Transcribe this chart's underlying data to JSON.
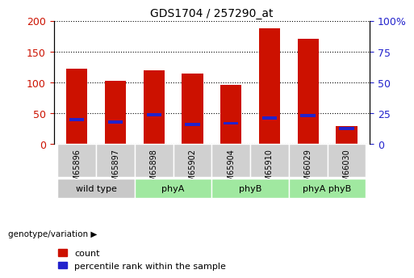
{
  "title": "GDS1704 / 257290_at",
  "samples": [
    "GSM65896",
    "GSM65897",
    "GSM65898",
    "GSM65902",
    "GSM65904",
    "GSM65910",
    "GSM66029",
    "GSM66030"
  ],
  "counts": [
    122,
    103,
    120,
    114,
    96,
    188,
    171,
    30
  ],
  "percentile_ranks": [
    20,
    18,
    24,
    16,
    17,
    21,
    23,
    13
  ],
  "groups": [
    {
      "label": "wild type",
      "start": 0,
      "end": 2,
      "color": "#c8c8c8"
    },
    {
      "label": "phyA",
      "start": 2,
      "end": 4,
      "color": "#a0e8a0"
    },
    {
      "label": "phyB",
      "start": 4,
      "end": 6,
      "color": "#a0e8a0"
    },
    {
      "label": "phyA phyB",
      "start": 6,
      "end": 8,
      "color": "#a0e8a0"
    }
  ],
  "sample_box_color": "#d0d0d0",
  "bar_color": "#cc1100",
  "percentile_color": "#2222cc",
  "left_axis_color": "#cc1100",
  "right_axis_color": "#2222cc",
  "ylim": [
    0,
    200
  ],
  "yticks_left": [
    0,
    50,
    100,
    150,
    200
  ],
  "yticks_right_vals": [
    0,
    25,
    50,
    75,
    100
  ],
  "yticks_right_labels": [
    "0",
    "25",
    "50",
    "75",
    "100%"
  ],
  "bar_width": 0.55,
  "legend_label_count": "count",
  "legend_label_pct": "percentile rank within the sample",
  "genotype_label": "genotype/variation"
}
